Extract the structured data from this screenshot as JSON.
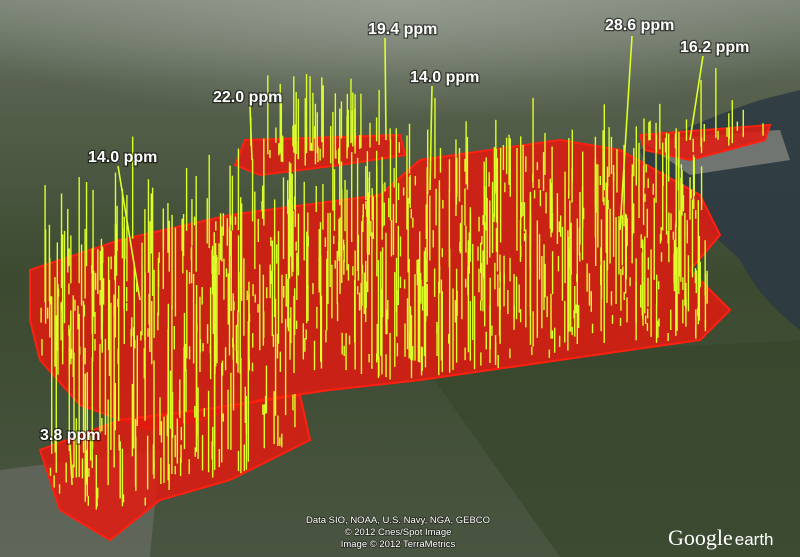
{
  "annotations": [
    "19.4 ppm",
    "28.6 ppm",
    "16.2 ppm",
    "14.0 ppm",
    "22.0 ppm",
    "14.0 ppm",
    "3.8 ppm"
  ],
  "attribution": [
    "Data SIO, NOAA, U.S. Navy, NGA, GEBCO",
    "© 2012 Cnes/Spot Image",
    "Image © 2012 TerraMetrics"
  ],
  "logo": {
    "google": "Google",
    "earth": "earth"
  }
}
